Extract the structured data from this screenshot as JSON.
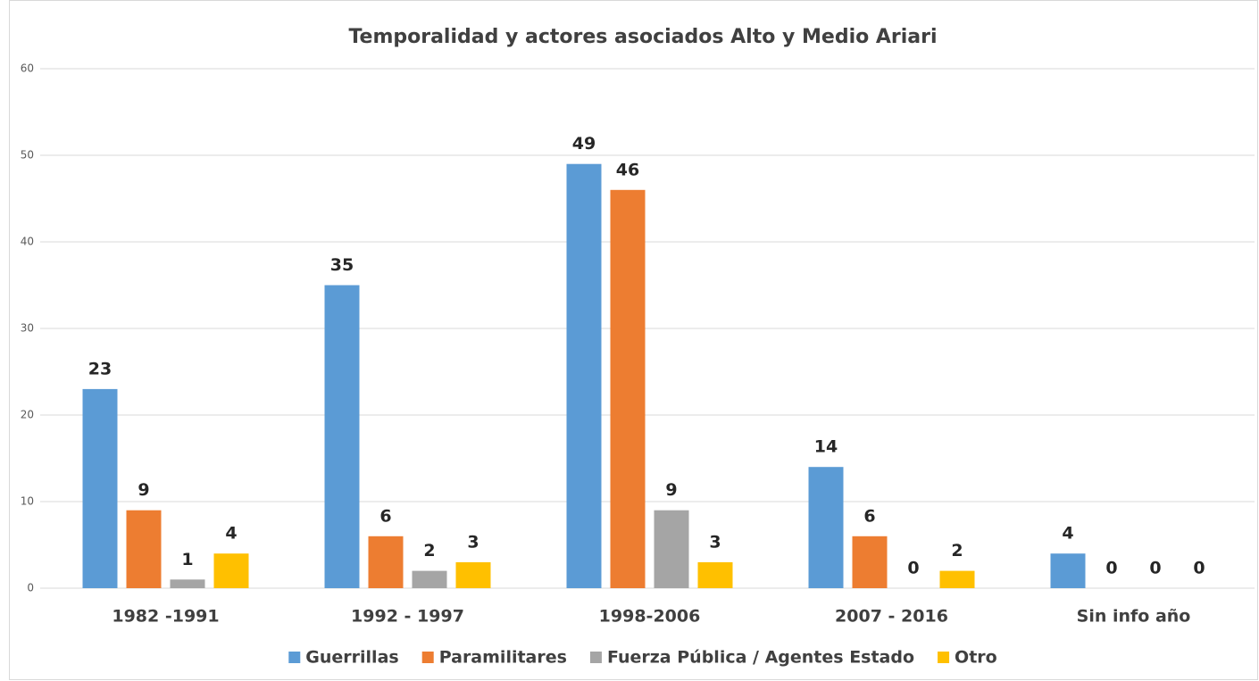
{
  "chart_data": {
    "type": "bar",
    "title": "Temporalidad y actores asociados Alto y Medio Ariari",
    "categories": [
      "1982 -1991",
      "1992 - 1997",
      "1998-2006",
      "2007 - 2016",
      "Sin info año"
    ],
    "series": [
      {
        "name": "Guerrillas",
        "color": "#5b9bd5",
        "values": [
          23,
          35,
          49,
          14,
          4
        ]
      },
      {
        "name": "Paramilitares",
        "color": "#ed7d31",
        "values": [
          9,
          6,
          46,
          6,
          0
        ]
      },
      {
        "name": "Fuerza Pública / Agentes Estado",
        "color": "#a5a5a5",
        "values": [
          1,
          2,
          9,
          0,
          0
        ]
      },
      {
        "name": "Otro",
        "color": "#ffc000",
        "values": [
          4,
          3,
          3,
          2,
          0
        ]
      }
    ],
    "ylim": [
      0,
      60
    ],
    "yticks": [
      0,
      10,
      20,
      30,
      40,
      50,
      60
    ],
    "grid": true,
    "legend": "bottom"
  }
}
